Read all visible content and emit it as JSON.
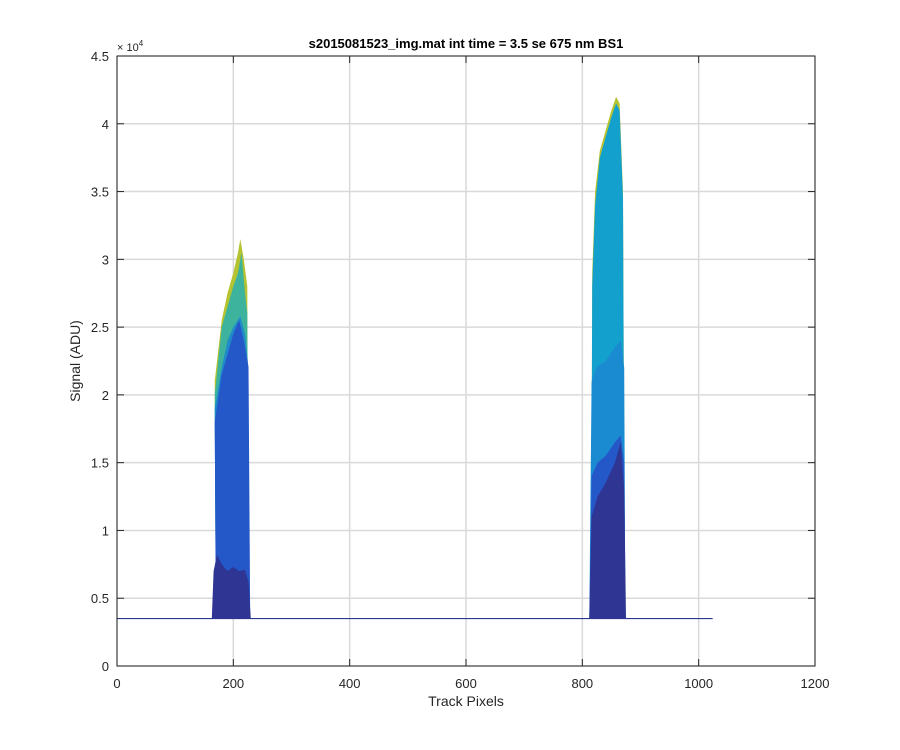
{
  "chart_data": {
    "type": "area",
    "title": "s2015081523_img.mat int time = 3.5 se  675 nm BS1",
    "xlabel": "Track Pixels",
    "ylabel": "Signal (ADU)",
    "xlim": [
      0,
      1200
    ],
    "ylim": [
      0,
      45000
    ],
    "xticks": [
      0,
      200,
      400,
      600,
      800,
      1000,
      1200
    ],
    "xtick_labels": [
      "0",
      "200",
      "400",
      "600",
      "800",
      "1000",
      "1200"
    ],
    "yticks": [
      0,
      5000,
      10000,
      15000,
      20000,
      25000,
      30000,
      35000,
      40000,
      45000
    ],
    "ytick_labels": [
      "0",
      "0.5",
      "1",
      "1.5",
      "2",
      "2.5",
      "3",
      "3.5",
      "4",
      "4.5"
    ],
    "y_exponent_label": "× 10",
    "y_exponent_power": "4",
    "grid": true,
    "baseline": 3500,
    "x_extent": [
      0,
      1024
    ],
    "series": [
      {
        "color": "#b6c330",
        "points": [
          [
            165,
            3500
          ],
          [
            170,
            3500
          ],
          [
            168,
            21000
          ],
          [
            180,
            25500
          ],
          [
            190,
            27500
          ],
          [
            200,
            29000
          ],
          [
            208,
            30500
          ],
          [
            212,
            31500
          ],
          [
            218,
            30000
          ],
          [
            224,
            28000
          ],
          [
            226,
            3500
          ],
          [
            228,
            3500
          ]
        ]
      },
      {
        "color": "#3db39e",
        "points": [
          [
            165,
            3500
          ],
          [
            170,
            3500
          ],
          [
            168,
            20000
          ],
          [
            180,
            25000
          ],
          [
            190,
            26500
          ],
          [
            200,
            28000
          ],
          [
            208,
            29000
          ],
          [
            214,
            30500
          ],
          [
            220,
            27500
          ],
          [
            224,
            26000
          ],
          [
            226,
            3500
          ],
          [
            228,
            3500
          ]
        ]
      },
      {
        "color": "#1f8bc8",
        "points": [
          [
            165,
            3500
          ],
          [
            170,
            3500
          ],
          [
            168,
            19000
          ],
          [
            180,
            22000
          ],
          [
            190,
            24000
          ],
          [
            200,
            25000
          ],
          [
            212,
            25800
          ],
          [
            220,
            24500
          ],
          [
            226,
            22000
          ],
          [
            227,
            3500
          ]
        ]
      },
      {
        "color": "#2457c8",
        "points": [
          [
            165,
            3500
          ],
          [
            170,
            3500
          ],
          [
            168,
            18000
          ],
          [
            180,
            21500
          ],
          [
            190,
            23000
          ],
          [
            200,
            24500
          ],
          [
            210,
            25500
          ],
          [
            218,
            24000
          ],
          [
            226,
            22000
          ],
          [
            229,
            3500
          ]
        ]
      },
      {
        "color": "#2e3592",
        "points": [
          [
            163,
            3500
          ],
          [
            166,
            7000
          ],
          [
            172,
            8200
          ],
          [
            180,
            7500
          ],
          [
            190,
            7000
          ],
          [
            200,
            7300
          ],
          [
            210,
            7000
          ],
          [
            220,
            7100
          ],
          [
            226,
            6200
          ],
          [
            230,
            3500
          ]
        ]
      },
      {
        "color": "#b6c330",
        "points": [
          [
            810,
            3500
          ],
          [
            815,
            3500
          ],
          [
            817,
            29000
          ],
          [
            822,
            35000
          ],
          [
            830,
            38000
          ],
          [
            840,
            39500
          ],
          [
            850,
            41000
          ],
          [
            858,
            42000
          ],
          [
            864,
            41500
          ],
          [
            870,
            35000
          ],
          [
            873,
            3500
          ]
        ]
      },
      {
        "color": "#14a0cc",
        "points": [
          [
            810,
            3500
          ],
          [
            815,
            3500
          ],
          [
            817,
            28000
          ],
          [
            822,
            34000
          ],
          [
            830,
            37500
          ],
          [
            840,
            39000
          ],
          [
            850,
            40500
          ],
          [
            858,
            41500
          ],
          [
            864,
            41000
          ],
          [
            870,
            34500
          ],
          [
            873,
            3500
          ]
        ]
      },
      {
        "color": "#1a8bd0",
        "points": [
          [
            812,
            3500
          ],
          [
            816,
            21000
          ],
          [
            824,
            22000
          ],
          [
            840,
            22500
          ],
          [
            856,
            23500
          ],
          [
            866,
            24000
          ],
          [
            872,
            22000
          ],
          [
            874,
            3500
          ]
        ]
      },
      {
        "color": "#2457c8",
        "points": [
          [
            812,
            3500
          ],
          [
            816,
            14000
          ],
          [
            826,
            15000
          ],
          [
            840,
            15500
          ],
          [
            856,
            16500
          ],
          [
            866,
            17000
          ],
          [
            872,
            15000
          ],
          [
            874,
            3500
          ]
        ]
      },
      {
        "color": "#2e3592",
        "points": [
          [
            812,
            3500
          ],
          [
            816,
            11000
          ],
          [
            826,
            12500
          ],
          [
            840,
            13500
          ],
          [
            856,
            15000
          ],
          [
            866,
            16500
          ],
          [
            872,
            13000
          ],
          [
            875,
            3500
          ]
        ]
      }
    ]
  }
}
